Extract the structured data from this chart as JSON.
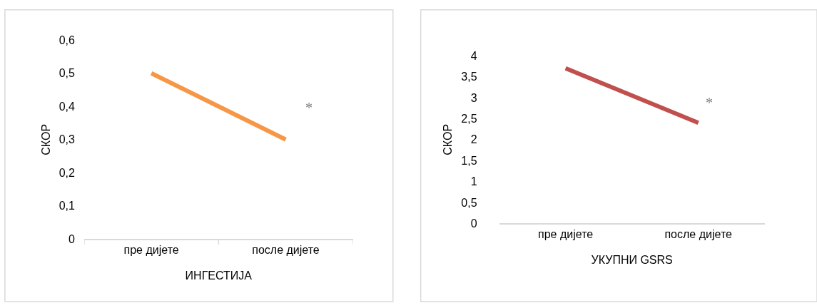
{
  "chart_data": [
    {
      "type": "line",
      "categories": [
        "пре дијете",
        "после дијете"
      ],
      "xlabel": "ИНГЕСТИЈА",
      "ylabel": "СКОР",
      "series": [
        {
          "color": "#f79646",
          "values": [
            0.5,
            0.3
          ]
        }
      ],
      "ylim": [
        0,
        0.6
      ],
      "yticks": [
        0,
        {
          "value": 0.1,
          "label": "0,1"
        },
        {
          "value": 0.2,
          "label": "0,2"
        },
        {
          "value": 0.3,
          "label": "0,3"
        },
        {
          "value": 0.4,
          "label": "0,4"
        },
        {
          "value": 0.5,
          "label": "0,5"
        },
        {
          "value": 0.6,
          "label": "0,6"
        }
      ],
      "annotations": [
        "*"
      ]
    },
    {
      "type": "line",
      "categories": [
        "пре дијете",
        "после дијете"
      ],
      "xlabel": "УКУПНИ GSRS",
      "ylabel": "СКОР",
      "series": [
        {
          "color": "#c0504d",
          "values": [
            3.7,
            2.4
          ]
        }
      ],
      "ylim": [
        0,
        4
      ],
      "yticks": [
        0,
        {
          "value": 0.5,
          "label": "0,5"
        },
        1,
        {
          "value": 1.5,
          "label": "1,5"
        },
        2,
        {
          "value": 2.5,
          "label": "2,5"
        },
        3,
        {
          "value": 3.5,
          "label": "3,5"
        },
        4
      ],
      "annotations": [
        "*"
      ]
    }
  ]
}
